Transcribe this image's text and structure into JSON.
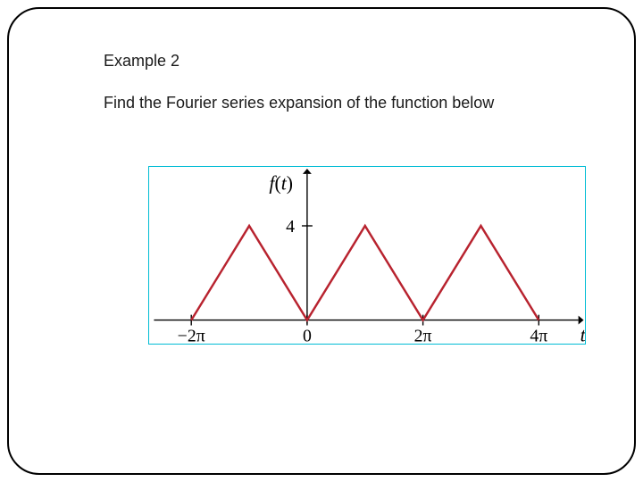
{
  "slide": {
    "title": "Example 2",
    "prompt": "Find the Fourier series expansion of the function below"
  },
  "figure": {
    "type": "line",
    "y_axis_label": "f(t)",
    "x_axis_label": "t",
    "y_tick_label": "4",
    "x_tick_labels": [
      "−2π",
      "0",
      "2π",
      "4π"
    ],
    "x_tick_values": [
      -6.2832,
      0,
      6.2832,
      12.5664
    ],
    "xlim": [
      -8.5,
      15.0
    ],
    "ylim": [
      -1.0,
      6.5
    ],
    "peak_value": 4,
    "wave_color": "#b8232f",
    "wave_points_t": [
      -6.2832,
      -3.1416,
      0,
      3.1416,
      6.2832,
      9.4248,
      12.5664
    ],
    "wave_points_y": [
      0,
      4,
      0,
      4,
      0,
      4,
      0
    ],
    "wave_width": 2.5,
    "axis_color": "#000000",
    "axis_width": 1.4,
    "border_color": "#00bcd4",
    "background_color": "#ffffff",
    "axis_label_fontsize": 22,
    "tick_label_fontsize": 20,
    "tick_half_len": 6
  }
}
